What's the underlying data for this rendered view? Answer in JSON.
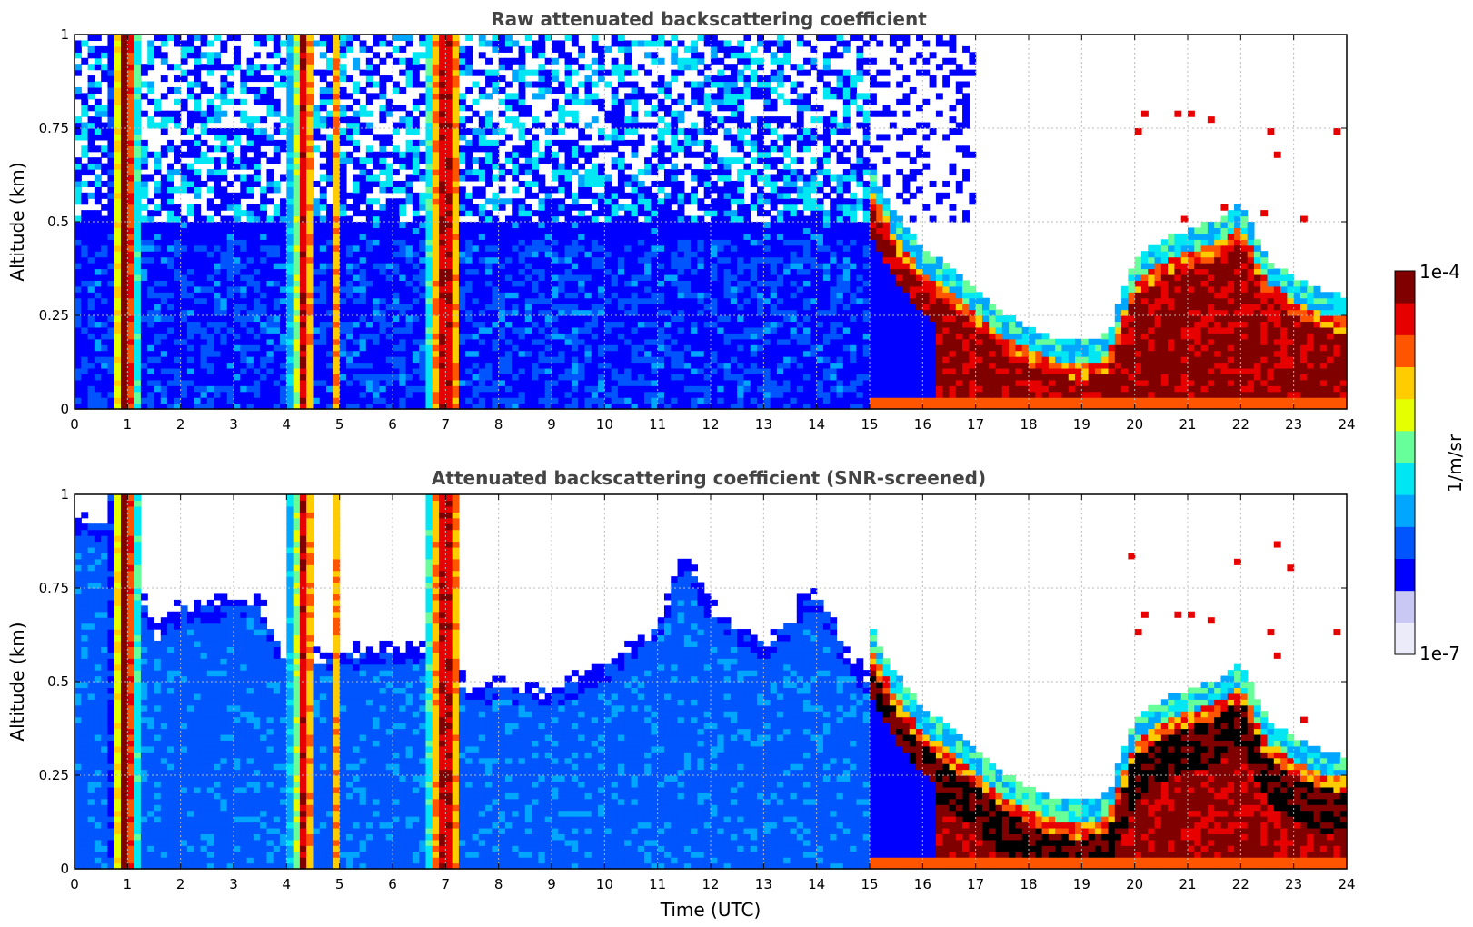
{
  "chart_data": [
    {
      "type": "heatmap",
      "title": "Raw attenuated backscattering coefficient",
      "xlabel": "",
      "ylabel": "Altitude (km)",
      "xlim": [
        0,
        24
      ],
      "ylim": [
        0,
        1
      ],
      "xticks": [
        "0",
        "1",
        "2",
        "3",
        "4",
        "5",
        "6",
        "7",
        "8",
        "9",
        "10",
        "11",
        "12",
        "13",
        "14",
        "15",
        "16",
        "17",
        "18",
        "19",
        "20",
        "21",
        "22",
        "23",
        "24"
      ],
      "yticks": [
        "0",
        "0.25",
        "0.5",
        "0.75",
        "1"
      ],
      "grid": true,
      "screened": false,
      "layer_top_km": [
        [
          15.0,
          0.55
        ],
        [
          15.5,
          0.42
        ],
        [
          16.0,
          0.33
        ],
        [
          16.5,
          0.28
        ],
        [
          17.0,
          0.22
        ],
        [
          17.5,
          0.16
        ],
        [
          18.0,
          0.12
        ],
        [
          18.5,
          0.09
        ],
        [
          19.0,
          0.08
        ],
        [
          19.5,
          0.1
        ],
        [
          20.0,
          0.3
        ],
        [
          20.5,
          0.35
        ],
        [
          21.0,
          0.38
        ],
        [
          21.5,
          0.4
        ],
        [
          22.0,
          0.45
        ],
        [
          22.5,
          0.3
        ],
        [
          23.0,
          0.25
        ],
        [
          23.5,
          0.22
        ],
        [
          24.0,
          0.2
        ]
      ],
      "rain_shafts_hours": [
        [
          0.7,
          1.1
        ],
        [
          4.2,
          4.5
        ],
        [
          4.9,
          5.0
        ],
        [
          6.9,
          7.2
        ]
      ]
    },
    {
      "type": "heatmap",
      "title": "Attenuated backscattering coefficient (SNR-screened)",
      "xlabel": "Time (UTC)",
      "ylabel": "Altitude (km)",
      "xlim": [
        0,
        24
      ],
      "ylim": [
        0,
        1
      ],
      "xticks": [
        "0",
        "1",
        "2",
        "3",
        "4",
        "5",
        "6",
        "7",
        "8",
        "9",
        "10",
        "11",
        "12",
        "13",
        "14",
        "15",
        "16",
        "17",
        "18",
        "19",
        "20",
        "21",
        "22",
        "23",
        "24"
      ],
      "yticks": [
        "0",
        "0.25",
        "0.5",
        "0.75",
        "1"
      ],
      "grid": true,
      "screened": true,
      "boundary_layer_top_km": [
        [
          0,
          0.95
        ],
        [
          1,
          0.9
        ],
        [
          1.5,
          0.62
        ],
        [
          2,
          0.7
        ],
        [
          3,
          0.72
        ],
        [
          3.5,
          0.72
        ],
        [
          4,
          0.55
        ],
        [
          5,
          0.58
        ],
        [
          6,
          0.6
        ],
        [
          7,
          0.58
        ],
        [
          7.5,
          0.48
        ],
        [
          8,
          0.5
        ],
        [
          9,
          0.48
        ],
        [
          10,
          0.55
        ],
        [
          11,
          0.65
        ],
        [
          11.5,
          0.85
        ],
        [
          12,
          0.7
        ],
        [
          13,
          0.6
        ],
        [
          14,
          0.75
        ],
        [
          14.5,
          0.6
        ],
        [
          15,
          0.5
        ]
      ]
    }
  ],
  "colorbar": {
    "label": "1/m/sr",
    "max_label": "1e-4",
    "min_label": "1e-7",
    "colors": [
      "#ecebf9",
      "#c9c8f4",
      "#0000ff",
      "#0055ff",
      "#00a6ff",
      "#00e6f2",
      "#66ff99",
      "#e6ff00",
      "#ffcc00",
      "#ff5500",
      "#e60000",
      "#800000"
    ]
  }
}
